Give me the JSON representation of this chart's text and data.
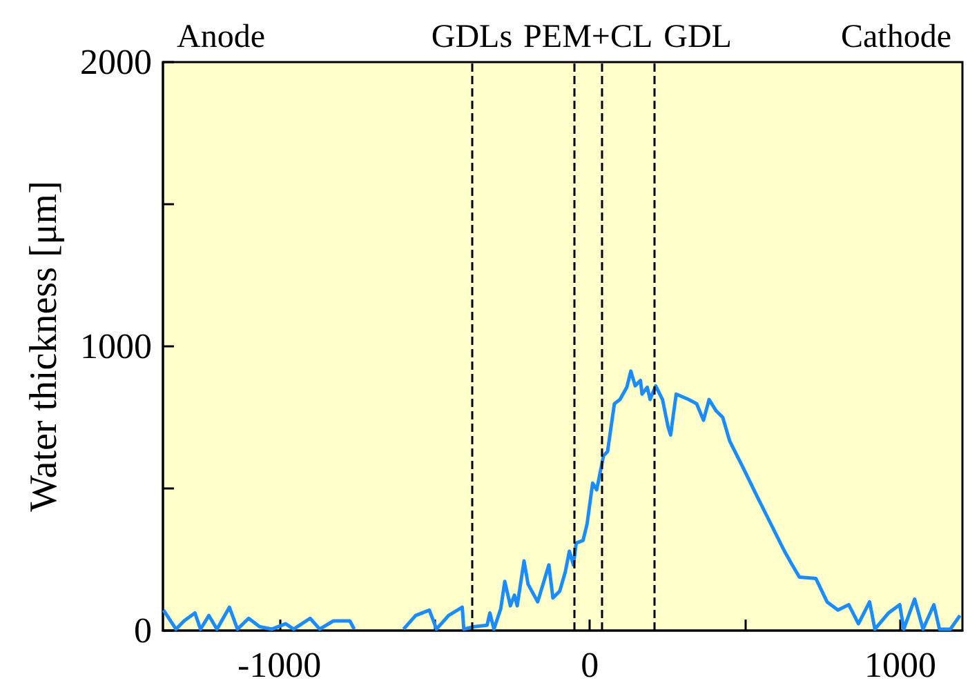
{
  "chart_data": {
    "type": "line",
    "ylabel": "Water thickness [μm]",
    "annotations": [
      "Anode",
      {
        "text": "GDLs",
        "x": -380,
        "y": 2000
      },
      "PEM+CL",
      "GDL",
      "Cathode"
    ],
    "series": [
      {
        "color": "#1a8cff",
        "x": [
          -1373,
          -1333,
          -1307,
          -1272,
          -1254,
          -1227,
          -1201,
          -1161,
          -1135,
          -1099,
          -1064,
          -1024,
          -980,
          -954,
          -901,
          -870,
          -826,
          -773,
          -759,
          -700,
          -600,
          -561,
          -517,
          -494,
          -455,
          -411,
          -406,
          -371,
          -331,
          -322,
          -309,
          -287,
          -274,
          -256,
          -243,
          -234,
          -212,
          -199,
          -168,
          -132,
          -119,
          -97,
          -79,
          -66,
          -53,
          -44,
          -22,
          -9,
          9,
          22,
          44,
          57,
          79,
          97,
          119,
          132,
          146,
          163,
          168,
          185,
          194,
          212,
          234,
          252,
          260,
          278,
          318,
          344,
          366,
          384,
          406,
          428,
          450,
          494,
          539,
          583,
          627,
          649,
          675,
          728,
          764,
          799,
          834,
          865,
          901,
          918,
          962,
          998,
          1011,
          1046,
          1073,
          1108,
          1126,
          1161,
          1192
        ],
        "values": [
          72,
          5,
          34,
          62,
          5,
          53,
          5,
          82,
          5,
          43,
          14,
          5,
          24,
          5,
          43,
          5,
          34,
          34,
          5,
          null,
          5,
          53,
          72,
          5,
          53,
          82,
          5,
          14,
          19,
          62,
          5,
          77,
          173,
          87,
          125,
          87,
          245,
          163,
          101,
          231,
          115,
          139,
          207,
          279,
          231,
          308,
          317,
          375,
          519,
          495,
          615,
          630,
          798,
          813,
          856,
          913,
          861,
          880,
          832,
          856,
          813,
          861,
          813,
          716,
          688,
          832,
          813,
          798,
          740,
          813,
          774,
          750,
          668,
          572,
          471,
          375,
          279,
          236,
          188,
          183,
          101,
          72,
          91,
          24,
          101,
          5,
          62,
          91,
          5,
          111,
          5,
          91,
          5,
          5,
          53
        ]
      }
    ],
    "xlim": [
      -1375,
      1200
    ],
    "xticks": [
      -1000,
      {
        "value": -500,
        "label": null
      },
      0,
      {
        "value": 500,
        "label": null
      },
      1000
    ],
    "ylim": [
      0,
      2000
    ],
    "yticks": [
      0,
      {
        "value": 500,
        "label": null
      },
      1000,
      {
        "value": 1500,
        "label": null
      },
      2000
    ],
    "ref_lines": [
      {
        "axis": "x",
        "value": -380,
        "color": "#000000",
        "line_style": "dashed"
      },
      {
        "axis": "x",
        "value": -49,
        "color": "#000000",
        "line_style": "dashed"
      },
      {
        "axis": "x",
        "value": 40,
        "color": "#000000",
        "line_style": "dashed"
      },
      {
        "axis": "x",
        "value": 207,
        "color": "#000000",
        "line_style": "dashed"
      }
    ],
    "grid": false,
    "marker": "none",
    "line_style": "solid"
  }
}
